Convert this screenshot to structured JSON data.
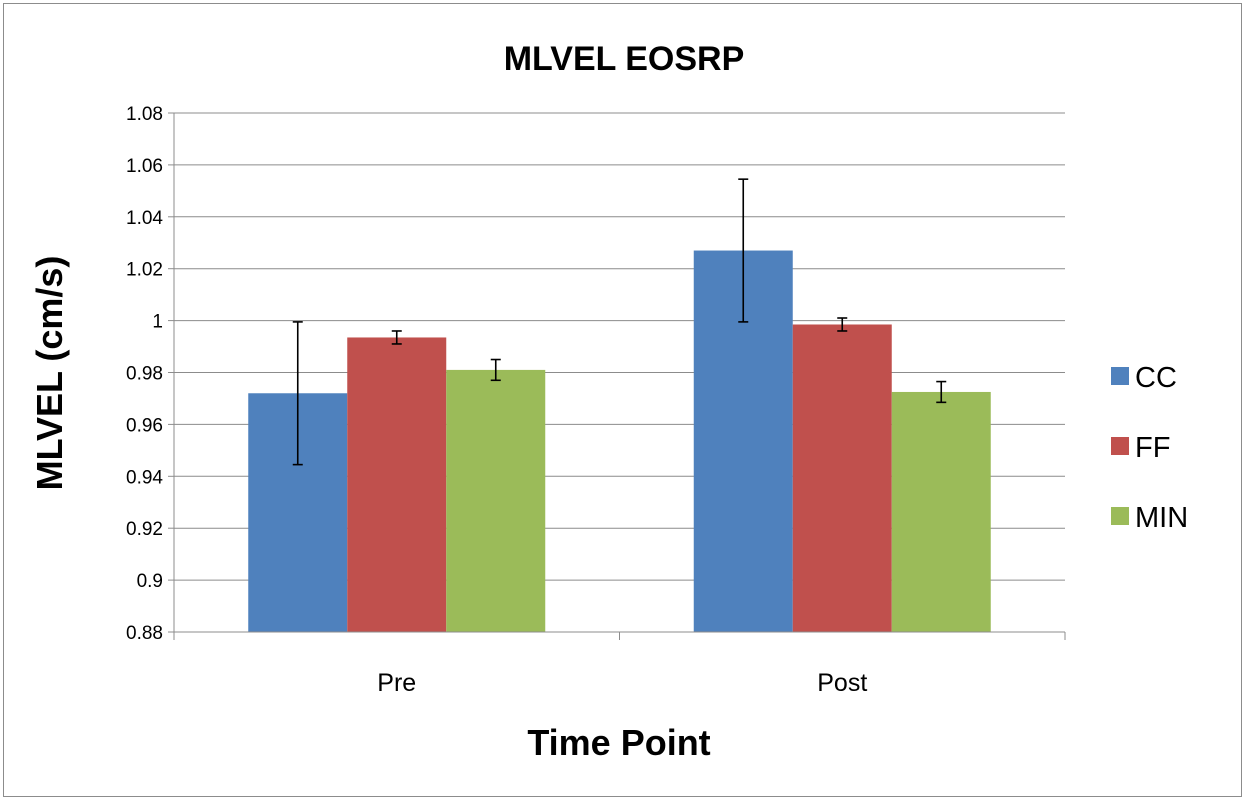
{
  "chart_data": {
    "type": "bar",
    "title": "MLVEL EOSRP",
    "xlabel": "Time Point",
    "ylabel": "MLVEL (cm/s)",
    "categories": [
      "Pre",
      "Post"
    ],
    "series": [
      {
        "name": "CC",
        "color": "#4f81bd",
        "values": [
          0.972,
          1.027
        ],
        "errors": [
          0.0275,
          0.0275
        ]
      },
      {
        "name": "FF",
        "color": "#c0504d",
        "values": [
          0.9935,
          0.9985
        ],
        "errors": [
          0.0025,
          0.0025
        ]
      },
      {
        "name": "MIN",
        "color": "#9bbb59",
        "values": [
          0.981,
          0.9725
        ],
        "errors": [
          0.004,
          0.004
        ]
      }
    ],
    "ylim": [
      0.88,
      1.08
    ],
    "yticks": [
      "0.88",
      "0.9",
      "0.92",
      "0.94",
      "0.96",
      "0.98",
      "1",
      "1.02",
      "1.04",
      "1.06",
      "1.08"
    ],
    "grid": true,
    "legend": "right"
  }
}
